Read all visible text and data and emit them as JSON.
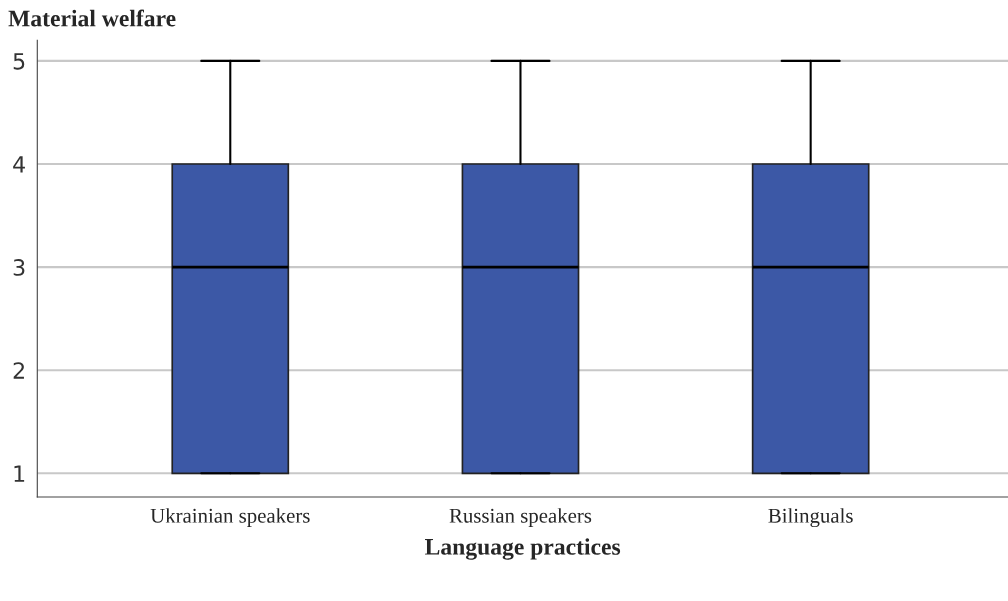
{
  "chart_data": {
    "type": "box",
    "ylabel": "Material welfare",
    "xlabel": "Language practices",
    "categories": [
      "Ukrainian speakers",
      "Russian speakers",
      "Bilinguals"
    ],
    "series": [
      {
        "color": "#3c58a6",
        "boxes": [
          {
            "low": 1,
            "q1": 1,
            "median": 3,
            "q3": 4,
            "high": 5
          },
          {
            "low": 1,
            "q1": 1,
            "median": 3,
            "q3": 4,
            "high": 5
          },
          {
            "low": 1,
            "q1": 1,
            "median": 3,
            "q3": 4,
            "high": 5
          }
        ]
      }
    ],
    "ylim": [
      0.77,
      5.2
    ],
    "yticks": [
      1,
      2,
      3,
      4,
      5
    ],
    "grid": "y",
    "legend": false
  }
}
